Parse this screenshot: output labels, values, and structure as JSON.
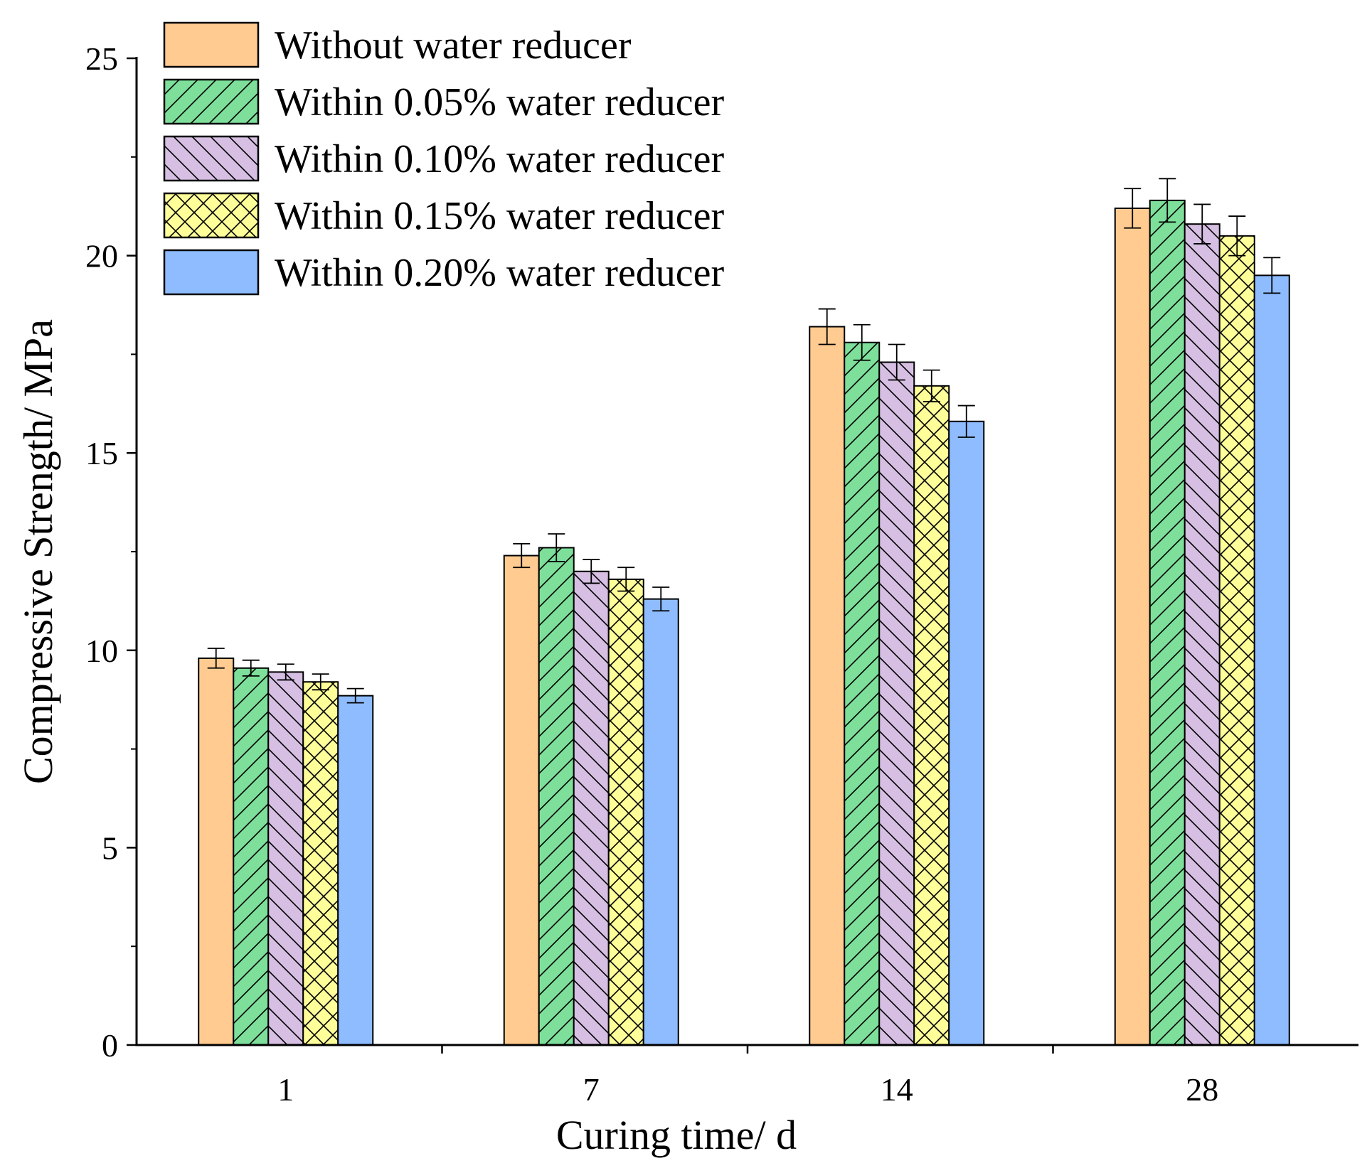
{
  "chart_data": {
    "type": "bar",
    "xlabel": "Curing time/ d",
    "ylabel": "Compressive Strength/ MPa",
    "categories": [
      "1",
      "7",
      "14",
      "28"
    ],
    "ylim": [
      0,
      25
    ],
    "yticks": [
      0,
      5,
      10,
      15,
      20,
      25
    ],
    "grid": false,
    "error_bars": true,
    "legend_position": "top-left",
    "series": [
      {
        "name": "Without water reducer",
        "color": "#ffcb91",
        "pattern": "solid",
        "values": [
          9.8,
          12.4,
          18.2,
          21.2
        ],
        "errors": [
          0.25,
          0.3,
          0.45,
          0.5
        ]
      },
      {
        "name": "Within 0.05% water reducer",
        "color": "#7ddf9a",
        "pattern": "forward-diagonal",
        "values": [
          9.55,
          12.6,
          17.8,
          21.4
        ],
        "errors": [
          0.2,
          0.35,
          0.45,
          0.55
        ]
      },
      {
        "name": "Within 0.10% water reducer",
        "color": "#d6bfe3",
        "pattern": "back-diagonal",
        "values": [
          9.45,
          12.0,
          17.3,
          20.8
        ],
        "errors": [
          0.2,
          0.3,
          0.45,
          0.5
        ]
      },
      {
        "name": "Within 0.15% water reducer",
        "color": "#ffff99",
        "pattern": "crosshatch",
        "values": [
          9.2,
          11.8,
          16.7,
          20.5
        ],
        "errors": [
          0.2,
          0.3,
          0.4,
          0.5
        ]
      },
      {
        "name": "Within 0.20% water reducer",
        "color": "#8ebcff",
        "pattern": "solid",
        "values": [
          8.85,
          11.3,
          15.8,
          19.5
        ],
        "errors": [
          0.18,
          0.3,
          0.4,
          0.45
        ]
      }
    ]
  }
}
